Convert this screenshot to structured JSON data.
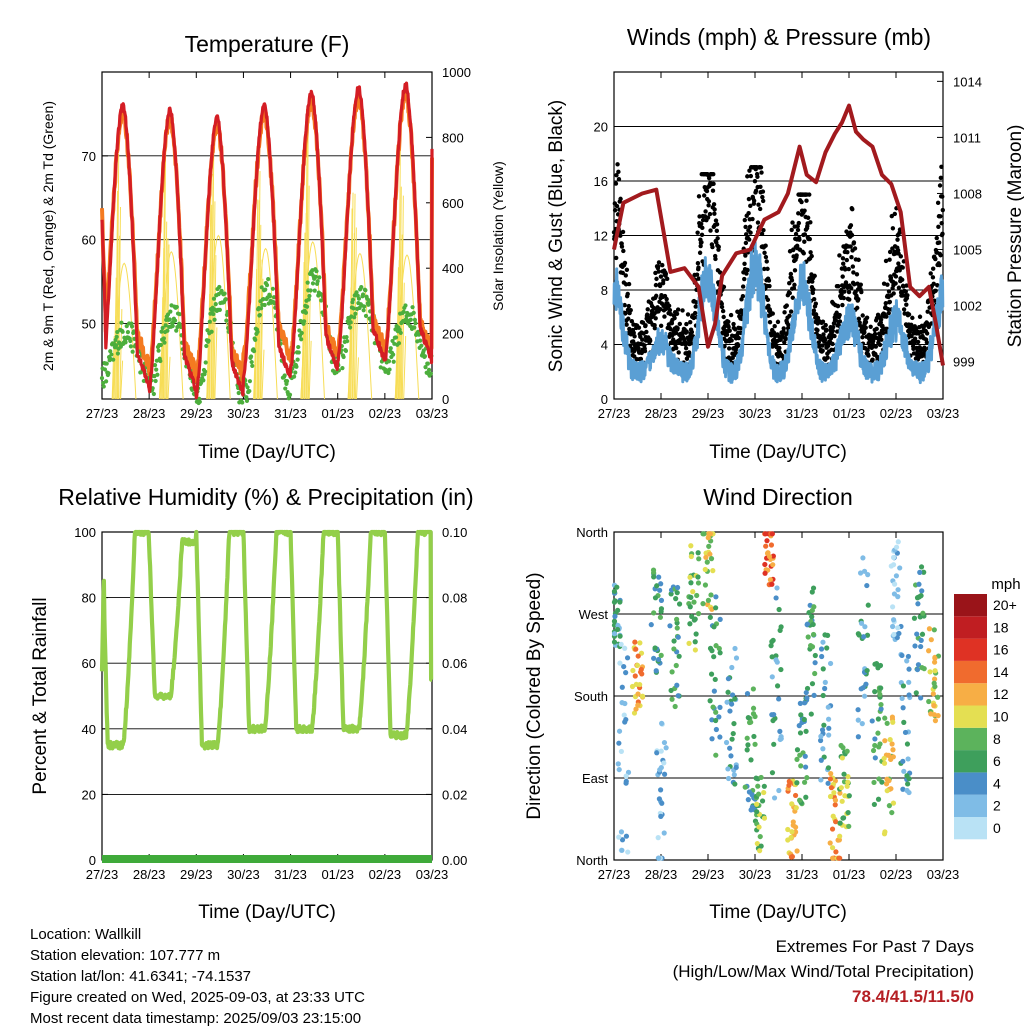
{
  "colors": {
    "temp2m": "#d41d24",
    "temp9m": "#f47a20",
    "dewpoint": "#4cae3c",
    "solar": "#f7dd56",
    "wind": "#5a9fd4",
    "gust": "#000000",
    "pressure": "#a21a1e",
    "rh": "#93cf4a",
    "precip": "#3faa3a"
  },
  "charts": {
    "temperature": {
      "title": "Temperature (F)",
      "xlabel": "Time (Day/UTC)",
      "ylabel": "2m & 9m T (Red, Orange) & 2m Td (Green)",
      "y2label": "Solar Insolation (Yellow)"
    },
    "winds": {
      "title": "Winds (mph) & Pressure (mb)",
      "xlabel": "Time (Day/UTC)",
      "ylabel": "Sonic Wind & Gust (Blue, Black)",
      "y2label": "Station Pressure (Maroon)"
    },
    "humidity": {
      "title": "Relative Humidity (%) & Precipitation (in)",
      "xlabel": "Time (Day/UTC)",
      "ylabel": "Percent & Total Rainfall"
    },
    "direction": {
      "title": "Wind Direction",
      "xlabel": "Time (Day/UTC)",
      "ylabel": "Direction (Colored By Speed)",
      "legend_title": "mph"
    }
  },
  "chart_data": [
    {
      "id": "temperature",
      "type": "line",
      "x_ticks": [
        "27/23",
        "28/23",
        "29/23",
        "30/23",
        "31/23",
        "01/23",
        "02/23",
        "03/23"
      ],
      "ylim": [
        41,
        80
      ],
      "y_ticks": [
        50,
        60,
        70
      ],
      "y2lim": [
        0,
        1000
      ],
      "y2_ticks": [
        0,
        200,
        400,
        600,
        800,
        1000
      ],
      "series": [
        {
          "key": "t2m",
          "axis": "left",
          "min": [
            42.5,
            42,
            41.5,
            43.5,
            44.5,
            45.5,
            45.5
          ],
          "max": [
            76,
            75.5,
            74.5,
            76,
            77.5,
            78,
            78.4
          ],
          "end": 70.5
        },
        {
          "key": "t9m",
          "axis": "left",
          "min": [
            45,
            44,
            43.5,
            46,
            46,
            47,
            46.5
          ],
          "max": [
            75,
            74.5,
            73.5,
            75,
            76.5,
            77,
            77.5
          ],
          "end": 70
        },
        {
          "key": "td",
          "axis": "left",
          "day": [
            49,
            51,
            53,
            54,
            55,
            53,
            51
          ],
          "night": [
            44,
            43,
            42,
            42,
            45,
            46,
            45
          ],
          "end": 52
        },
        {
          "key": "solar",
          "axis": "right",
          "peak": [
            830,
            900,
            1000,
            920,
            960,
            890,
            880
          ]
        }
      ]
    },
    {
      "id": "winds",
      "type": "line",
      "x_ticks": [
        "27/23",
        "28/23",
        "29/23",
        "30/23",
        "31/23",
        "01/23",
        "02/23",
        "03/23"
      ],
      "ylim": [
        0,
        24
      ],
      "y_ticks": [
        0,
        4,
        8,
        12,
        16,
        20
      ],
      "y2lim": [
        997,
        1014.5
      ],
      "y2_ticks": [
        999,
        1002,
        1005,
        1008,
        1011,
        1014
      ],
      "series": [
        {
          "key": "sonic",
          "axis": "left",
          "daily_peak": [
            9,
            4,
            10,
            11,
            9,
            6,
            6,
            8
          ]
        },
        {
          "key": "gust",
          "axis": "left",
          "daily_peak": [
            18,
            16.5,
            16.5,
            17,
            15,
            14,
            14,
            17.5
          ]
        },
        {
          "key": "pressure",
          "axis": "right",
          "x": [
            0,
            0.2,
            0.6,
            0.9,
            1.05,
            1.2,
            1.5,
            1.8,
            2.0,
            2.15,
            2.3,
            2.6,
            2.9,
            3.2,
            3.5,
            3.7,
            3.95,
            4.1,
            4.3,
            4.5,
            4.7,
            4.85,
            5.0,
            5.15,
            5.3,
            5.5,
            5.7,
            5.9,
            6.1,
            6.3,
            6.5,
            6.7,
            6.85,
            7.0
          ],
          "y": [
            1005,
            1007.5,
            1008,
            1008.2,
            1006,
            1003.8,
            1004,
            1003,
            999.8,
            1001,
            1003.6,
            1004.8,
            1005,
            1006.6,
            1007,
            1008,
            1010.5,
            1009,
            1008.6,
            1010.2,
            1011.2,
            1011.8,
            1012.7,
            1011.3,
            1010.9,
            1010.5,
            1009,
            1008.5,
            1007,
            1003,
            1002.5,
            1003,
            1001,
            998.8
          ]
        }
      ]
    },
    {
      "id": "humidity",
      "type": "line",
      "x_ticks": [
        "27/23",
        "28/23",
        "29/23",
        "30/23",
        "31/23",
        "01/23",
        "02/23",
        "03/23"
      ],
      "ylim": [
        0,
        100
      ],
      "y_ticks": [
        0,
        20,
        40,
        60,
        80,
        100
      ],
      "y2lim": [
        0,
        0.1
      ],
      "y2_ticks": [
        "0.00",
        "0.02",
        "0.04",
        "0.06",
        "0.08",
        "0.10"
      ],
      "series": [
        {
          "key": "rh",
          "axis": "left",
          "night_max": [
            100,
            97,
            100,
            100,
            100,
            100,
            100
          ],
          "day_min": [
            35,
            50,
            35,
            40,
            40,
            40,
            38
          ],
          "end": 55
        },
        {
          "key": "precip",
          "axis": "right",
          "total": 0
        }
      ]
    },
    {
      "id": "direction",
      "type": "scatter",
      "x_ticks": [
        "27/23",
        "28/23",
        "29/23",
        "30/23",
        "31/23",
        "01/23",
        "02/23",
        "03/23"
      ],
      "ylim": [
        0,
        360
      ],
      "y_ticks": [
        "North",
        "East",
        "South",
        "West",
        "North"
      ],
      "legend": [
        "0",
        "2",
        "4",
        "6",
        "8",
        "10",
        "12",
        "14",
        "16",
        "18",
        "20+"
      ],
      "legend_colors": [
        "#b9e2f5",
        "#7fbce6",
        "#4a8ec8",
        "#3e9f5c",
        "#5cb35c",
        "#e4df52",
        "#f7ae45",
        "#f06b2e",
        "#df3224",
        "#c01e22",
        "#9a1419"
      ]
    }
  ],
  "footer": {
    "location": "Location: Wallkill",
    "elevation": "Station elevation: 107.777 m",
    "latlon": "Station lat/lon: 41.6341; -74.1537",
    "created": "Figure created on Wed, 2025-09-03, at 23:33 UTC",
    "recent": "Most recent data timestamp: 2025/09/03 23:15:00",
    "extremes_title": "Extremes For Past 7 Days",
    "extremes_sub": "(High/Low/Max Wind/Total Precipitation)",
    "extremes_value": "78.4/41.5/11.5/0"
  }
}
